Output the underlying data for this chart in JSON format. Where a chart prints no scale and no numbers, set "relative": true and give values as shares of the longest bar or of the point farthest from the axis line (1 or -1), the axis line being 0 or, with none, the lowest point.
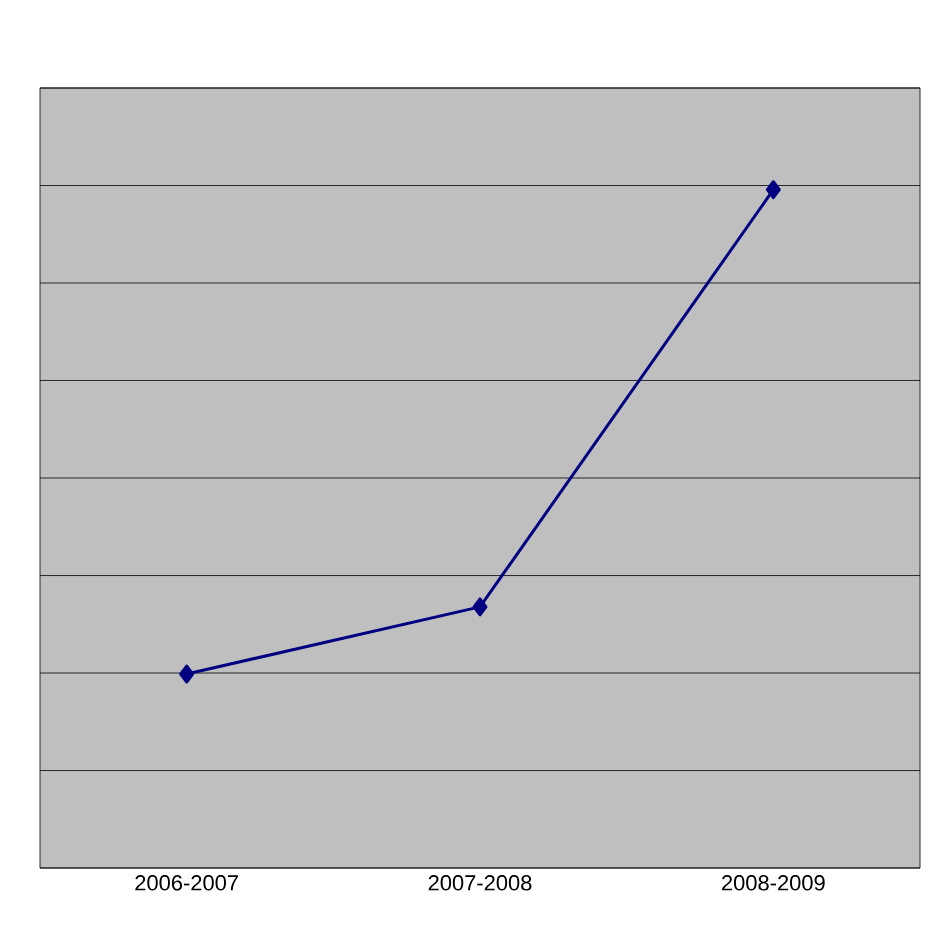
{
  "chart_data": {
    "type": "line",
    "categories": [
      "2006-2007",
      "2007-2008",
      "2008-2009"
    ],
    "series": [
      {
        "color": "#000080",
        "values": [
          0.286,
          0.385,
          1
        ]
      }
    ],
    "relative": true,
    "grid": "y",
    "marker": "diamond",
    "line_style": "solid"
  }
}
